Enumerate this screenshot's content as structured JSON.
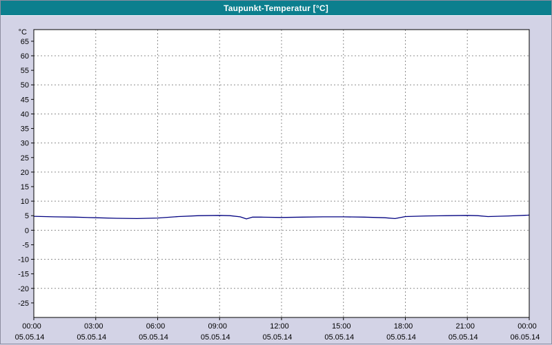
{
  "colors": {
    "titlebar_bg": "#0c7f8e",
    "titlebar_text": "#ffffff",
    "window_bg": "#d3d3e6",
    "plot_bg": "#ffffff",
    "plot_border": "#000000",
    "grid": "#8c8c8c",
    "axis_text": "#000000",
    "line": "#000080"
  },
  "chart_data": {
    "type": "line",
    "title": "Taupunkt-Temperatur [°C]",
    "y_unit_label": "°C",
    "ylim": [
      -30,
      69
    ],
    "xlim": [
      0,
      24
    ],
    "y_ticks": [
      65,
      60,
      55,
      50,
      45,
      40,
      35,
      30,
      25,
      20,
      15,
      10,
      5,
      0,
      -5,
      -10,
      -15,
      -20,
      -25
    ],
    "y_gridlines": [
      60,
      50,
      40,
      30,
      20,
      10,
      0,
      -10,
      -20
    ],
    "x_ticks": [
      0,
      3,
      6,
      9,
      12,
      15,
      18,
      21,
      24
    ],
    "x_tick_labels": [
      "00:00",
      "03:00",
      "06:00",
      "09:00",
      "12:00",
      "15:00",
      "18:00",
      "21:00",
      "00:00"
    ],
    "x_date_labels": [
      "05.05.14",
      "05.05.14",
      "05.05.14",
      "05.05.14",
      "05.05.14",
      "05.05.14",
      "05.05.14",
      "05.05.14",
      "06.05.14"
    ],
    "grid_style": "dashed",
    "legend": "none",
    "series": [
      {
        "name": "Taupunkt-Temperatur",
        "color": "#000080",
        "x": [
          0,
          1,
          2,
          3,
          4,
          5,
          6,
          7,
          8,
          9,
          9.5,
          10,
          10.3,
          10.6,
          11,
          12,
          13,
          14,
          15,
          16,
          17,
          17.5,
          18,
          19,
          20,
          21,
          21.5,
          22,
          23,
          24
        ],
        "values": [
          4.8,
          4.6,
          4.5,
          4.3,
          4.1,
          4.0,
          4.2,
          4.7,
          5.0,
          5.1,
          5.0,
          4.6,
          3.9,
          4.5,
          4.5,
          4.4,
          4.5,
          4.6,
          4.6,
          4.5,
          4.3,
          4.0,
          4.7,
          4.9,
          5.0,
          5.1,
          5.0,
          4.7,
          4.9,
          5.2
        ]
      }
    ]
  }
}
